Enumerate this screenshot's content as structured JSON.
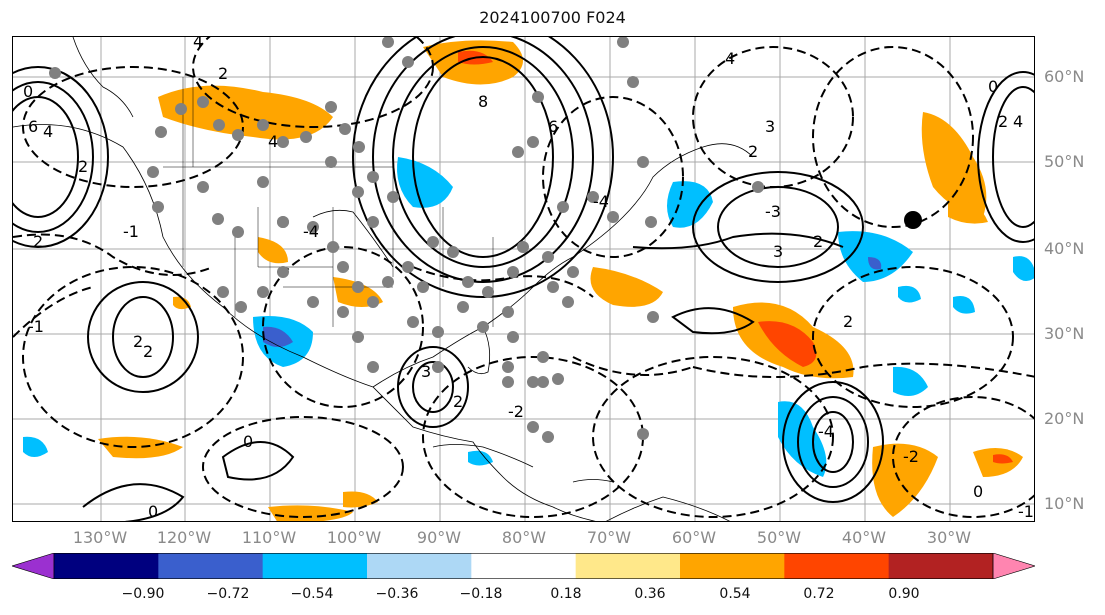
{
  "title": "2024100700 F024",
  "lat_labels": [
    "60°N",
    "50°N",
    "40°N",
    "30°N",
    "20°N",
    "10°N"
  ],
  "lon_labels": [
    "130°W",
    "120°W",
    "110°W",
    "100°W",
    "90°W",
    "80°W",
    "70°W",
    "60°W",
    "50°W",
    "40°W",
    "30°W"
  ],
  "colorbar": {
    "colors": [
      "#9b30d0",
      "#00007f",
      "#3a5fcd",
      "#00bfff",
      "#add8f5",
      "#ffffff",
      "#ffe88a",
      "#ffa500",
      "#ff4500",
      "#b22222",
      "#ff85b0"
    ],
    "ticks": [
      "−0.90",
      "−0.72",
      "−0.54",
      "−0.36",
      "−0.18",
      "0.18",
      "0.36",
      "0.54",
      "0.72",
      "0.90"
    ]
  },
  "contour_labels": [
    "4",
    "2",
    "0",
    "-1",
    "2",
    "3",
    "-3",
    "4",
    "2",
    "2",
    "2",
    "6",
    "8",
    "-4",
    "4",
    "2",
    "0",
    "3",
    "2",
    "-4",
    "4",
    "3",
    "-4",
    "-2",
    "-2",
    "0",
    "2",
    "-1",
    "0",
    "2",
    "4",
    "6",
    "-1",
    "2",
    "0"
  ],
  "marker_color_dots": "#808080",
  "marker_color_point": "#000000",
  "shade_colors": {
    "orange": "#ffa500",
    "red": "#ff4500",
    "darkred": "#b22222",
    "pink": "#ff85b0",
    "lightblue": "#00bfff",
    "blue": "#3a5fcd",
    "pale": "#add8f5"
  }
}
